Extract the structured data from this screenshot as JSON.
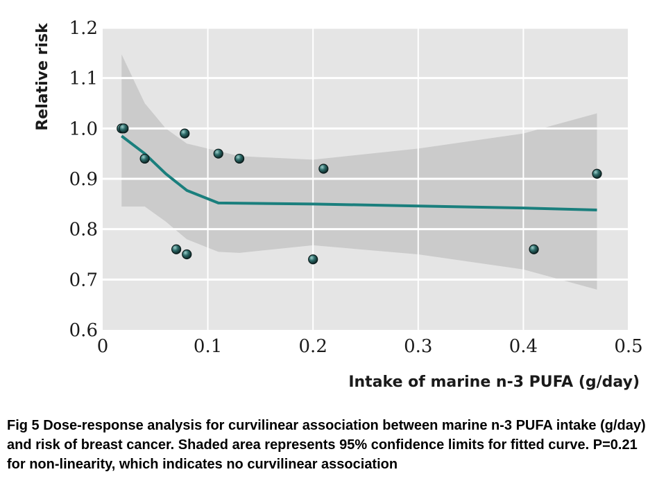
{
  "chart_data": {
    "type": "scatter",
    "xlabel": "Intake of marine n-3 PUFA (g/day)",
    "ylabel": "Relative risk",
    "xlim": [
      0,
      0.5
    ],
    "ylim": [
      0.6,
      1.2
    ],
    "x_ticks": [
      "0",
      "0.1",
      "0.2",
      "0.3",
      "0.4",
      "0.5"
    ],
    "y_ticks": [
      "0.6",
      "0.7",
      "0.8",
      "0.9",
      "1.0",
      "1.1",
      "1.2"
    ],
    "grid": "horizontal and vertical, white lines",
    "points": [
      {
        "x": 0.018,
        "y": 1.0
      },
      {
        "x": 0.02,
        "y": 1.0
      },
      {
        "x": 0.04,
        "y": 0.94
      },
      {
        "x": 0.07,
        "y": 0.76
      },
      {
        "x": 0.078,
        "y": 0.99
      },
      {
        "x": 0.08,
        "y": 0.75
      },
      {
        "x": 0.11,
        "y": 0.95
      },
      {
        "x": 0.13,
        "y": 0.94
      },
      {
        "x": 0.2,
        "y": 0.74
      },
      {
        "x": 0.21,
        "y": 0.92
      },
      {
        "x": 0.41,
        "y": 0.76
      },
      {
        "x": 0.47,
        "y": 0.91
      }
    ],
    "fitted_curve": {
      "x": [
        0.018,
        0.04,
        0.06,
        0.08,
        0.11,
        0.2,
        0.3,
        0.4,
        0.47
      ],
      "y": [
        0.985,
        0.95,
        0.91,
        0.877,
        0.852,
        0.85,
        0.846,
        0.842,
        0.838
      ]
    },
    "confidence_band": {
      "x": [
        0.018,
        0.04,
        0.06,
        0.08,
        0.11,
        0.13,
        0.2,
        0.3,
        0.4,
        0.47
      ],
      "upper": [
        1.147,
        1.05,
        1.0,
        0.97,
        0.955,
        0.945,
        0.938,
        0.96,
        0.99,
        1.03
      ],
      "lower": [
        0.845,
        0.845,
        0.815,
        0.78,
        0.755,
        0.753,
        0.768,
        0.75,
        0.72,
        0.68
      ]
    },
    "colors": {
      "plot_background": "#e5e5e5",
      "band": "#cbcbcb",
      "grid": "#ffffff",
      "curve": "#1a7f7d",
      "point_fill": "#184848",
      "point_edge": "#0a1a1a"
    }
  },
  "caption": "Fig 5 Dose-response analysis for curvilinear association between marine n-3 PUFA intake (g/day) and risk of breast cancer. Shaded area represents 95% confidence limits for fitted curve. P=0.21 for non-linearity, which indicates no curvilinear association"
}
